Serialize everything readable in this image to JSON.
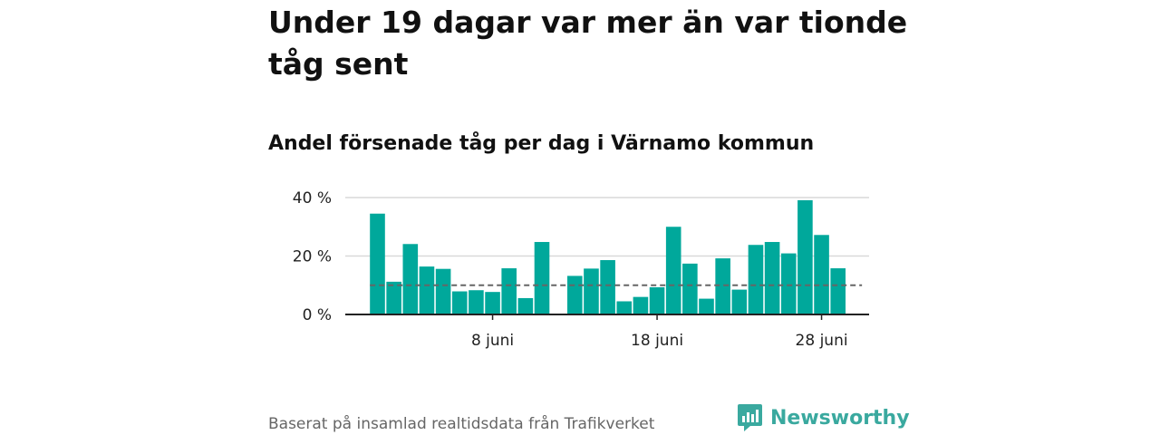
{
  "title": "Under 19 dagar var mer än var tionde tåg sent",
  "subtitle": "Andel försenade tåg per dag i Värnamo kommun",
  "footer": "Baserat på insamlad realtidsdata från Trafikverket",
  "brand": {
    "name": "Newsworthy",
    "color": "#3aa99f"
  },
  "colors": {
    "bar": "#00a89b",
    "reference_line": "#666666",
    "grid": "#d9d9d9",
    "axis": "#222222"
  },
  "chart_data": {
    "type": "bar",
    "title": "Andel försenade tåg per dag i Värnamo kommun",
    "xlabel": "",
    "ylabel": "",
    "x_days": [
      1,
      2,
      3,
      4,
      5,
      6,
      7,
      8,
      9,
      10,
      11,
      12,
      13,
      14,
      15,
      16,
      17,
      18,
      19,
      20,
      21,
      22,
      23,
      24,
      25,
      26,
      27,
      28,
      29,
      30
    ],
    "values": [
      34.5,
      11.2,
      24.1,
      16.4,
      15.6,
      7.9,
      8.3,
      7.7,
      15.8,
      5.6,
      24.8,
      null,
      13.2,
      15.7,
      18.6,
      4.5,
      6.0,
      9.3,
      30.0,
      17.4,
      5.4,
      19.2,
      8.5,
      23.8,
      24.8,
      20.9,
      39.1,
      27.2,
      15.8,
      null
    ],
    "ylim": [
      0,
      40
    ],
    "yticks": [
      0,
      20,
      40
    ],
    "ytick_labels": [
      "0 %",
      "20 %",
      "40 %"
    ],
    "xticks": [
      8,
      18,
      28
    ],
    "xtick_labels": [
      "8 juni",
      "18 juni",
      "28 juni"
    ],
    "reference_value": 10,
    "grid": true
  }
}
